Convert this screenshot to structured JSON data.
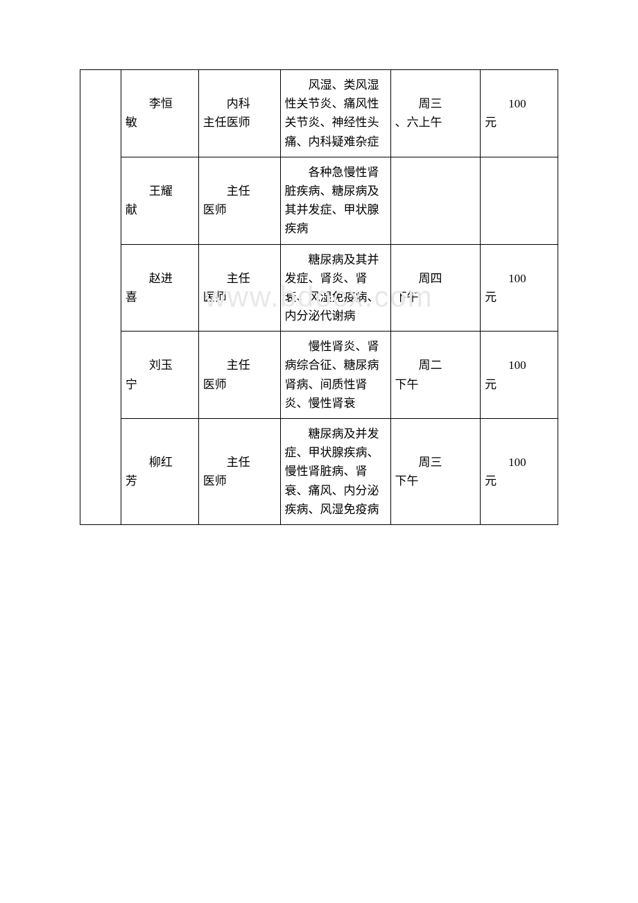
{
  "watermark": "www.bdocx.com",
  "table": {
    "columns": {
      "dept_width": 50,
      "name_width": 95,
      "title_width": 100,
      "specialty_width": 135,
      "schedule_width": 110,
      "fee_width": 95
    },
    "border_color": "#000000",
    "background_color": "#ffffff",
    "text_color": "#000000",
    "font_size": 17,
    "rows": [
      {
        "name_line1": "李恒",
        "name_line2": "敏",
        "title_line1": "内科",
        "title_line2": "主任医师",
        "specialty": "风湿、类风湿性关节炎、痛风性关节炎、神经性头痛、内科疑难杂症",
        "schedule_line1": "周三",
        "schedule_line2": "、六上午",
        "fee_line1": "100",
        "fee_line2": "元"
      },
      {
        "name_line1": "王耀",
        "name_line2": "献",
        "title_line1": "主任",
        "title_line2": "医师",
        "specialty": "各种急慢性肾脏疾病、糖尿病及其并发症、甲状腺疾病",
        "schedule_line1": "",
        "schedule_line2": "",
        "fee_line1": "",
        "fee_line2": ""
      },
      {
        "name_line1": "赵进",
        "name_line2": "喜",
        "title_line1": "主任",
        "title_line2": "医师",
        "specialty": "糖尿病及其并发症、肾炎、肾衰、风湿免疫病、内分泌代谢病",
        "schedule_line1": "周四",
        "schedule_line2": "下午",
        "fee_line1": "100",
        "fee_line2": "元"
      },
      {
        "name_line1": "刘玉",
        "name_line2": "宁",
        "title_line1": "主任",
        "title_line2": "医师",
        "specialty": "慢性肾炎、肾病综合征、糖尿病肾病、间质性肾炎、慢性肾衰",
        "schedule_line1": "周二",
        "schedule_line2": "下午",
        "fee_line1": "100",
        "fee_line2": "元"
      },
      {
        "name_line1": "柳红",
        "name_line2": "芳",
        "title_line1": "主任",
        "title_line2": "医师",
        "specialty": "糖尿病及并发症、甲状腺疾病、慢性肾脏病、肾衰、痛风、内分泌疾病、风湿免疫病",
        "schedule_line1": "周三",
        "schedule_line2": "下午",
        "fee_line1": "100",
        "fee_line2": "元"
      }
    ]
  }
}
